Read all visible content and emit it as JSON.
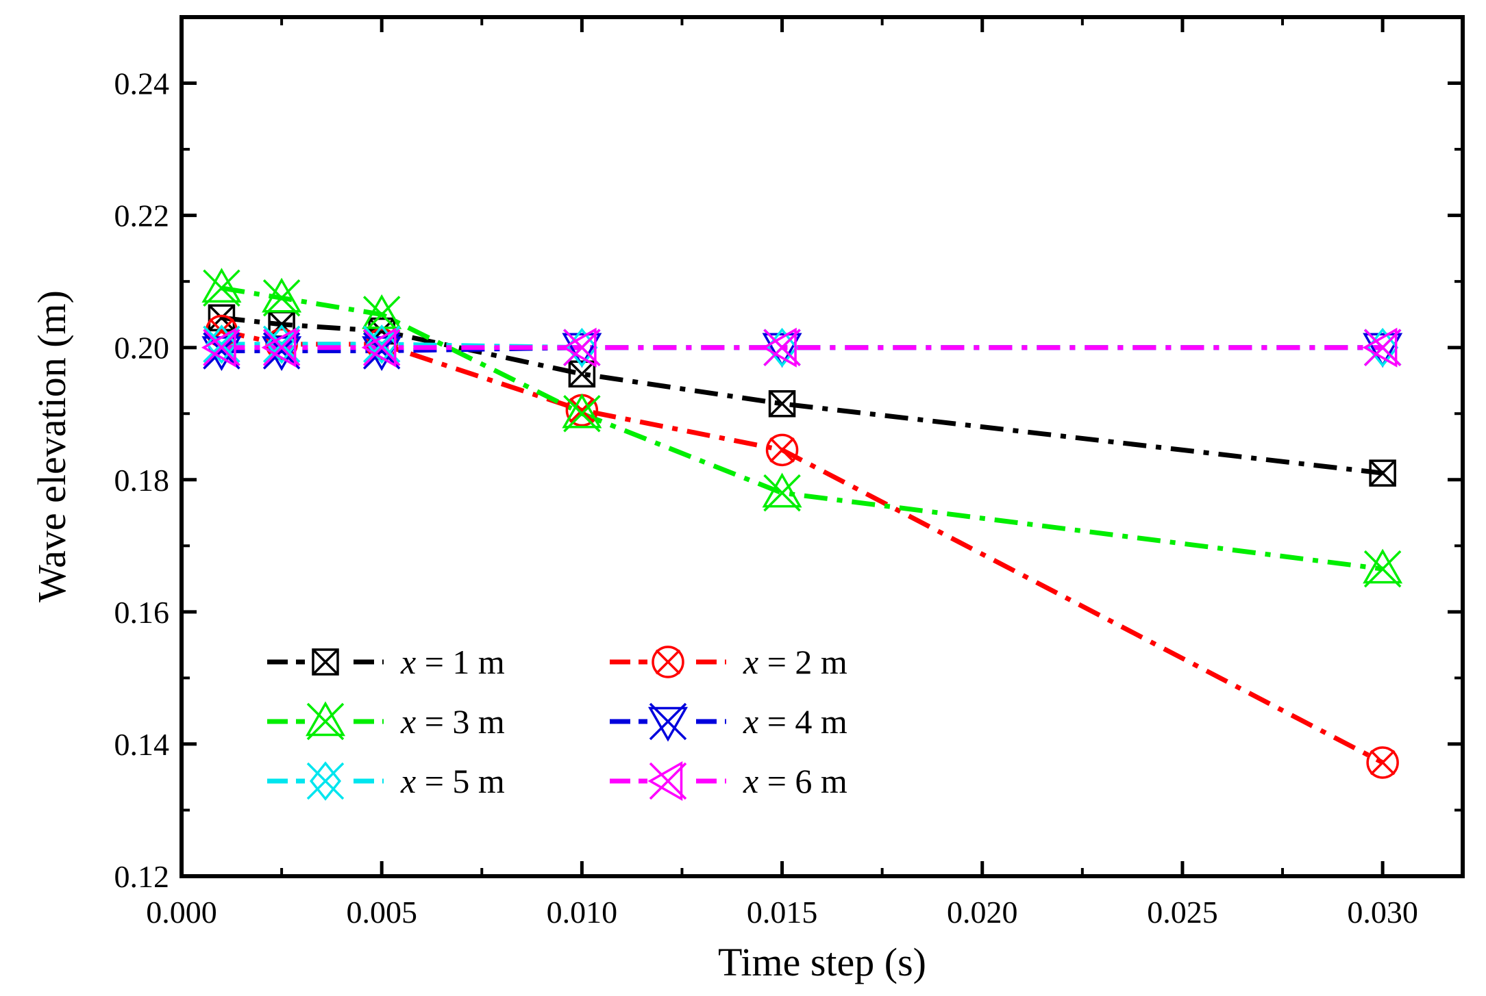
{
  "chart_data": {
    "type": "line",
    "title": "",
    "xlabel": "Time step (s)",
    "ylabel": "Wave elevation (m)",
    "xlim": [
      0.0,
      0.032
    ],
    "ylim": [
      0.12,
      0.25
    ],
    "xticks": [
      "0.000",
      "0.005",
      "0.010",
      "0.015",
      "0.020",
      "0.025",
      "0.030"
    ],
    "yticks": [
      "0.12",
      "0.14",
      "0.16",
      "0.18",
      "0.20",
      "0.22",
      "0.24"
    ],
    "x": [
      0.001,
      0.0025,
      0.005,
      0.01,
      0.015,
      0.03
    ],
    "legend_position": "lower-left",
    "series": [
      {
        "name": "x = 1 m",
        "var": "x",
        "rest": " = 1 m",
        "color": "#000000",
        "marker": "boxed-x",
        "values": [
          0.2045,
          0.2035,
          0.2025,
          0.196,
          0.1915,
          0.181
        ]
      },
      {
        "name": "x = 2 m",
        "var": "x",
        "rest": " = 2 m",
        "color": "#ff0000",
        "marker": "circle-x",
        "values": [
          0.2025,
          0.2005,
          0.2005,
          0.1905,
          0.1845,
          0.1372
        ]
      },
      {
        "name": "x = 3 m",
        "var": "x",
        "rest": " = 3 m",
        "color": "#00ee00",
        "marker": "triangle-up-x",
        "values": [
          0.209,
          0.2075,
          0.205,
          0.19,
          0.178,
          0.1665
        ]
      },
      {
        "name": "x = 4 m",
        "var": "x",
        "rest": " = 4 m",
        "color": "#0000dd",
        "marker": "triangle-down-x",
        "values": [
          0.1995,
          0.1995,
          0.1995,
          0.2,
          0.2,
          0.2
        ]
      },
      {
        "name": "x = 5 m",
        "var": "x",
        "rest": " = 5 m",
        "color": "#00e5ee",
        "marker": "diamond-x",
        "values": [
          0.2005,
          0.2005,
          0.2005,
          0.2,
          0.2,
          0.2
        ]
      },
      {
        "name": "x = 6 m",
        "var": "x",
        "rest": " = 6 m",
        "color": "#ff00ff",
        "marker": "triangle-left-x",
        "values": [
          0.2,
          0.2,
          0.2,
          0.2,
          0.2,
          0.2
        ]
      }
    ]
  }
}
